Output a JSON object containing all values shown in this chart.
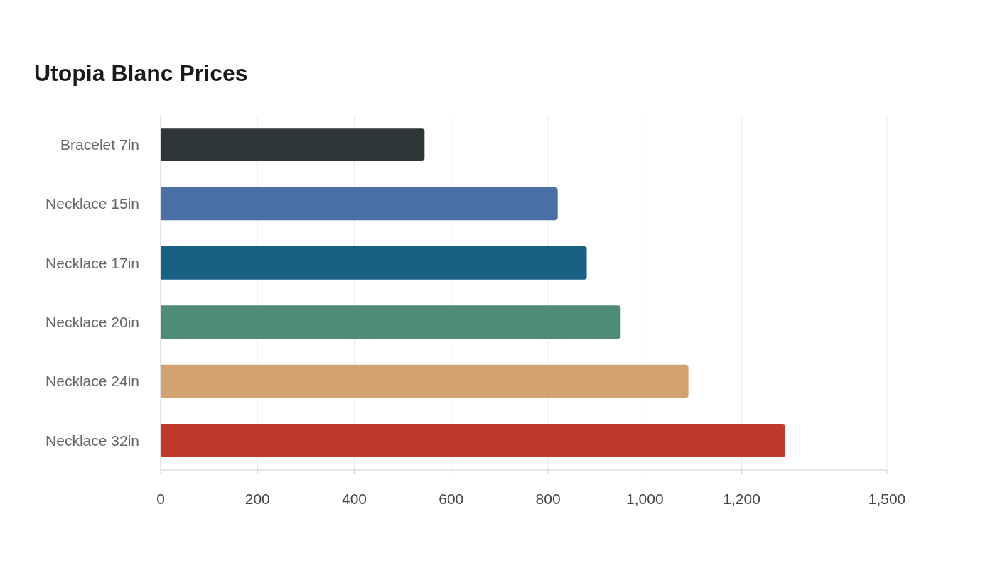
{
  "chart_data": {
    "type": "bar",
    "title": "Utopia Blanc Prices",
    "orientation": "horizontal",
    "categories": [
      "Bracelet 7in",
      "Necklace 15in",
      "Necklace 17in",
      "Necklace 20in",
      "Necklace 24in",
      "Necklace 32in"
    ],
    "values": [
      545,
      820,
      880,
      950,
      1090,
      1290
    ],
    "colors": [
      "#2e3638",
      "#4a6fa5",
      "#186185",
      "#4e8b79",
      "#d3a271",
      "#c0392b"
    ],
    "xlim": [
      0,
      1500
    ],
    "xticks": [
      0,
      200,
      400,
      600,
      800,
      {
        "value": 1000,
        "label": "1,000"
      },
      {
        "value": 1200,
        "label": "1,200"
      },
      {
        "value": 1500,
        "label": "1,500"
      }
    ],
    "grid": "x"
  }
}
